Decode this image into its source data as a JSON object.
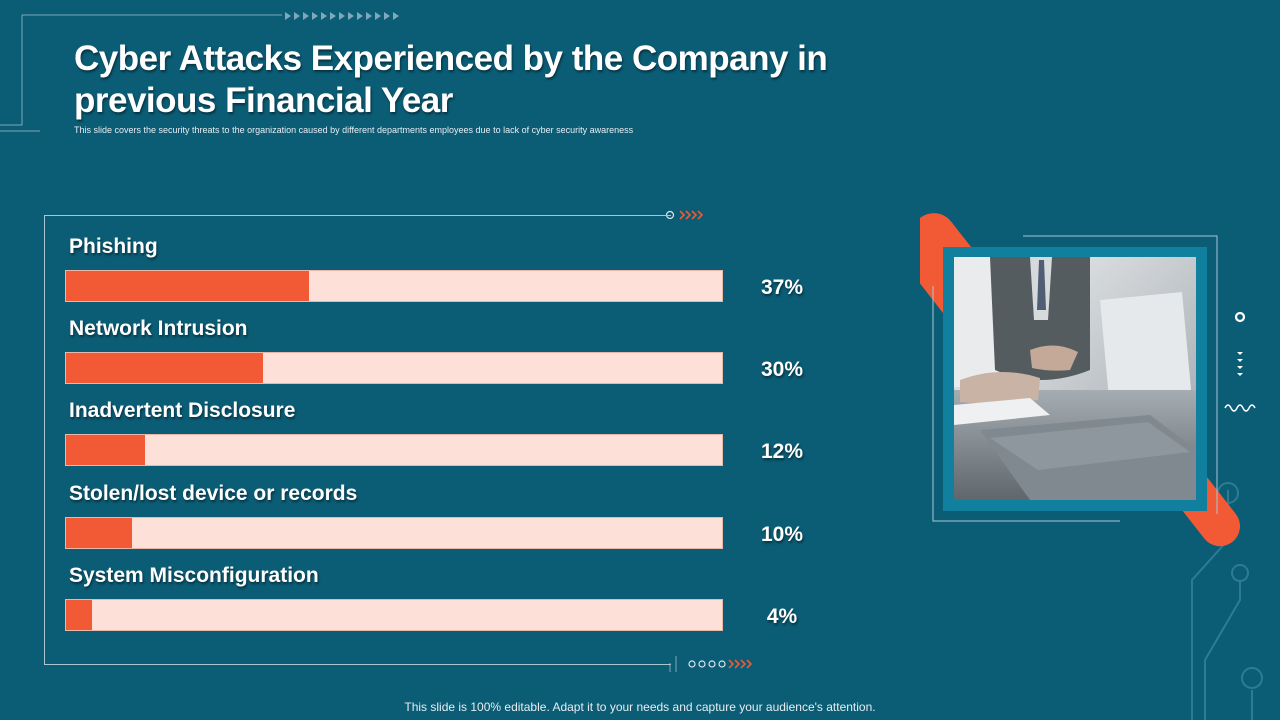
{
  "slide": {
    "title": "Cyber Attacks Experienced by the Company in previous Financial Year",
    "subtitle": "This slide covers the security threats to the organization caused by different departments employees due to lack of cyber security awareness",
    "footer": "This slide is 100% editable. Adapt it to your needs and capture your audience's attention."
  },
  "colors": {
    "background": "#0b5c75",
    "accent": "#f15a35",
    "track": "#fde0d8",
    "line": "#a9c6d3",
    "frame": "#117f9e"
  },
  "chart_data": {
    "type": "bar",
    "orientation": "horizontal",
    "categories": [
      "Phishing",
      "Network Intrusion",
      "Inadvertent Disclosure",
      "Stolen/lost device or records",
      "System Misconfiguration"
    ],
    "values": [
      37,
      30,
      12,
      10,
      4
    ],
    "value_labels": [
      "37%",
      "30%",
      "12%",
      "10%",
      "4%"
    ],
    "xlim": [
      0,
      100
    ],
    "unit": "%",
    "grid": false,
    "legend": "none"
  }
}
